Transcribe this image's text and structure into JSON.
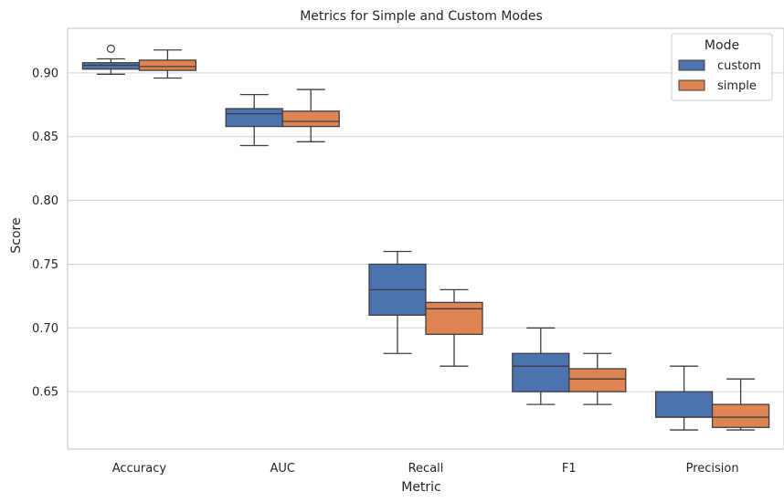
{
  "chart_data": {
    "type": "box",
    "title": "Metrics for Simple and Custom Modes",
    "xlabel": "Metric",
    "ylabel": "Score",
    "ylim": [
      0.605,
      0.935
    ],
    "yticks": [
      0.65,
      0.7,
      0.75,
      0.8,
      0.85,
      0.9
    ],
    "ytick_labels": [
      "0.65",
      "0.70",
      "0.75",
      "0.80",
      "0.85",
      "0.90"
    ],
    "categories": [
      "Accuracy",
      "AUC",
      "Recall",
      "F1",
      "Precision"
    ],
    "grid": "horizontal",
    "legend": {
      "title": "Mode",
      "placement": "top-right",
      "entries": [
        "custom",
        "simple"
      ]
    },
    "series": [
      {
        "name": "custom",
        "color": "#4c72b0",
        "boxes": [
          {
            "whisker_low": 0.899,
            "q1": 0.903,
            "median": 0.906,
            "q3": 0.908,
            "whisker_high": 0.911,
            "outliers": [
              0.919
            ]
          },
          {
            "whisker_low": 0.843,
            "q1": 0.858,
            "median": 0.868,
            "q3": 0.872,
            "whisker_high": 0.883,
            "outliers": []
          },
          {
            "whisker_low": 0.68,
            "q1": 0.71,
            "median": 0.73,
            "q3": 0.75,
            "whisker_high": 0.76,
            "outliers": []
          },
          {
            "whisker_low": 0.64,
            "q1": 0.65,
            "median": 0.67,
            "q3": 0.68,
            "whisker_high": 0.7,
            "outliers": []
          },
          {
            "whisker_low": 0.62,
            "q1": 0.63,
            "median": 0.63,
            "q3": 0.65,
            "whisker_high": 0.67,
            "outliers": []
          }
        ]
      },
      {
        "name": "simple",
        "color": "#dd8452",
        "boxes": [
          {
            "whisker_low": 0.896,
            "q1": 0.902,
            "median": 0.905,
            "q3": 0.91,
            "whisker_high": 0.918,
            "outliers": []
          },
          {
            "whisker_low": 0.846,
            "q1": 0.858,
            "median": 0.862,
            "q3": 0.87,
            "whisker_high": 0.887,
            "outliers": []
          },
          {
            "whisker_low": 0.67,
            "q1": 0.695,
            "median": 0.715,
            "q3": 0.72,
            "whisker_high": 0.73,
            "outliers": []
          },
          {
            "whisker_low": 0.64,
            "q1": 0.65,
            "median": 0.66,
            "q3": 0.668,
            "whisker_high": 0.68,
            "outliers": []
          },
          {
            "whisker_low": 0.62,
            "q1": 0.622,
            "median": 0.63,
            "q3": 0.64,
            "whisker_high": 0.66,
            "outliers": []
          }
        ]
      }
    ]
  }
}
